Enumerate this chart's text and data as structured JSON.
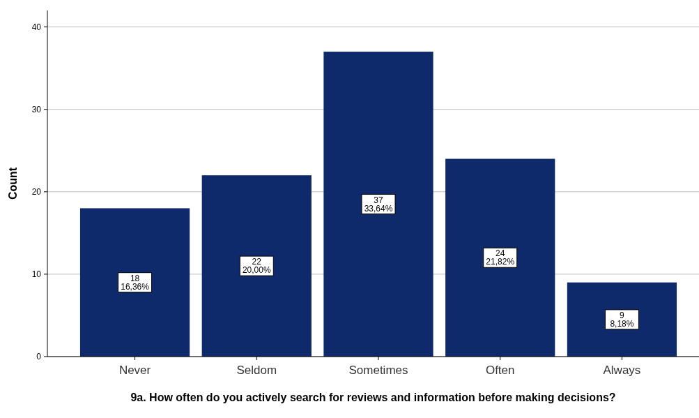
{
  "chart_data": {
    "type": "bar",
    "xlabel": "9a. How often do you actively search for reviews and information before making decisions?",
    "ylabel": "Count",
    "categories": [
      "Never",
      "Seldom",
      "Sometimes",
      "Often",
      "Always"
    ],
    "values": [
      18,
      22,
      37,
      24,
      9
    ],
    "value_labels": [
      "18\n16,36%",
      "22\n20,00%",
      "37\n33,64%",
      "24\n21,82%",
      "9\n8,18%"
    ],
    "color": "#0f2a6b",
    "ylim": [
      0,
      42
    ],
    "yticks": [
      0,
      10,
      20,
      30,
      40
    ],
    "grid": "y"
  }
}
